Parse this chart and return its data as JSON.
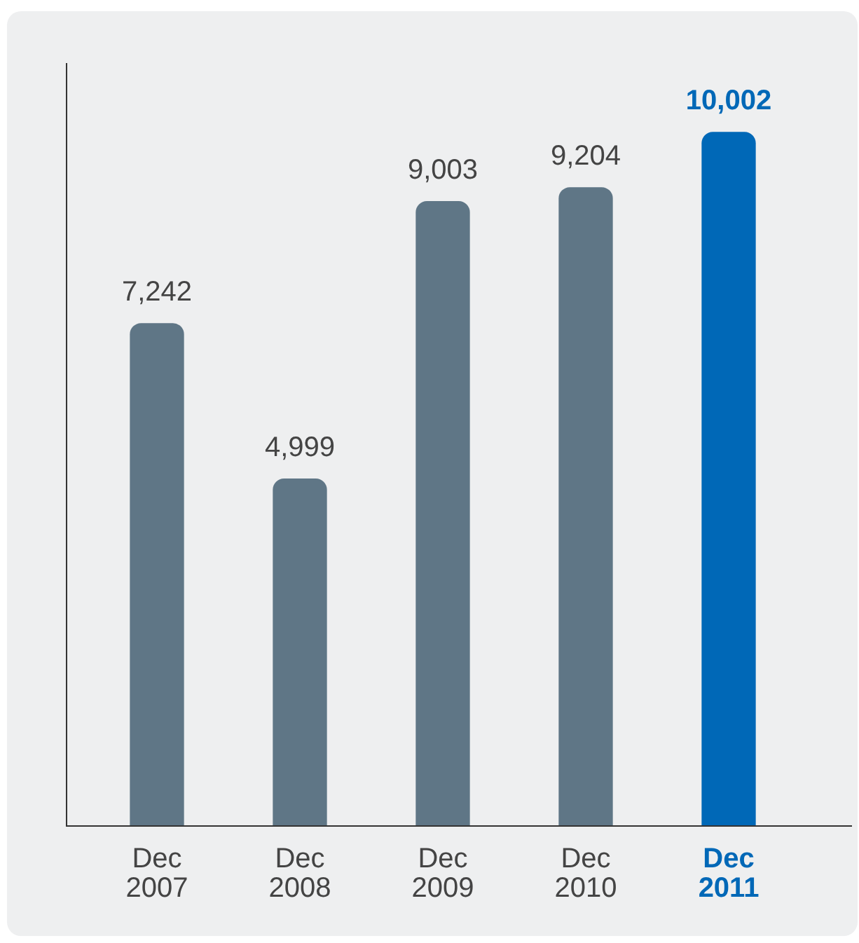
{
  "chart_data": {
    "type": "bar",
    "categories": [
      "Dec 2007",
      "Dec 2008",
      "Dec 2009",
      "Dec 2010",
      "Dec 2011"
    ],
    "values": [
      7242,
      4999,
      9003,
      9204,
      10002
    ],
    "color": "#5f7686",
    "colors": [
      "#5f7686",
      "#5f7686",
      "#5f7686",
      "#5f7686",
      "#0068b7"
    ],
    "value_labels": [
      "7,242",
      "4,999",
      "9,003",
      "9,204",
      "10,002"
    ],
    "tick_labels": "x",
    "grid": false,
    "legend": false
  }
}
